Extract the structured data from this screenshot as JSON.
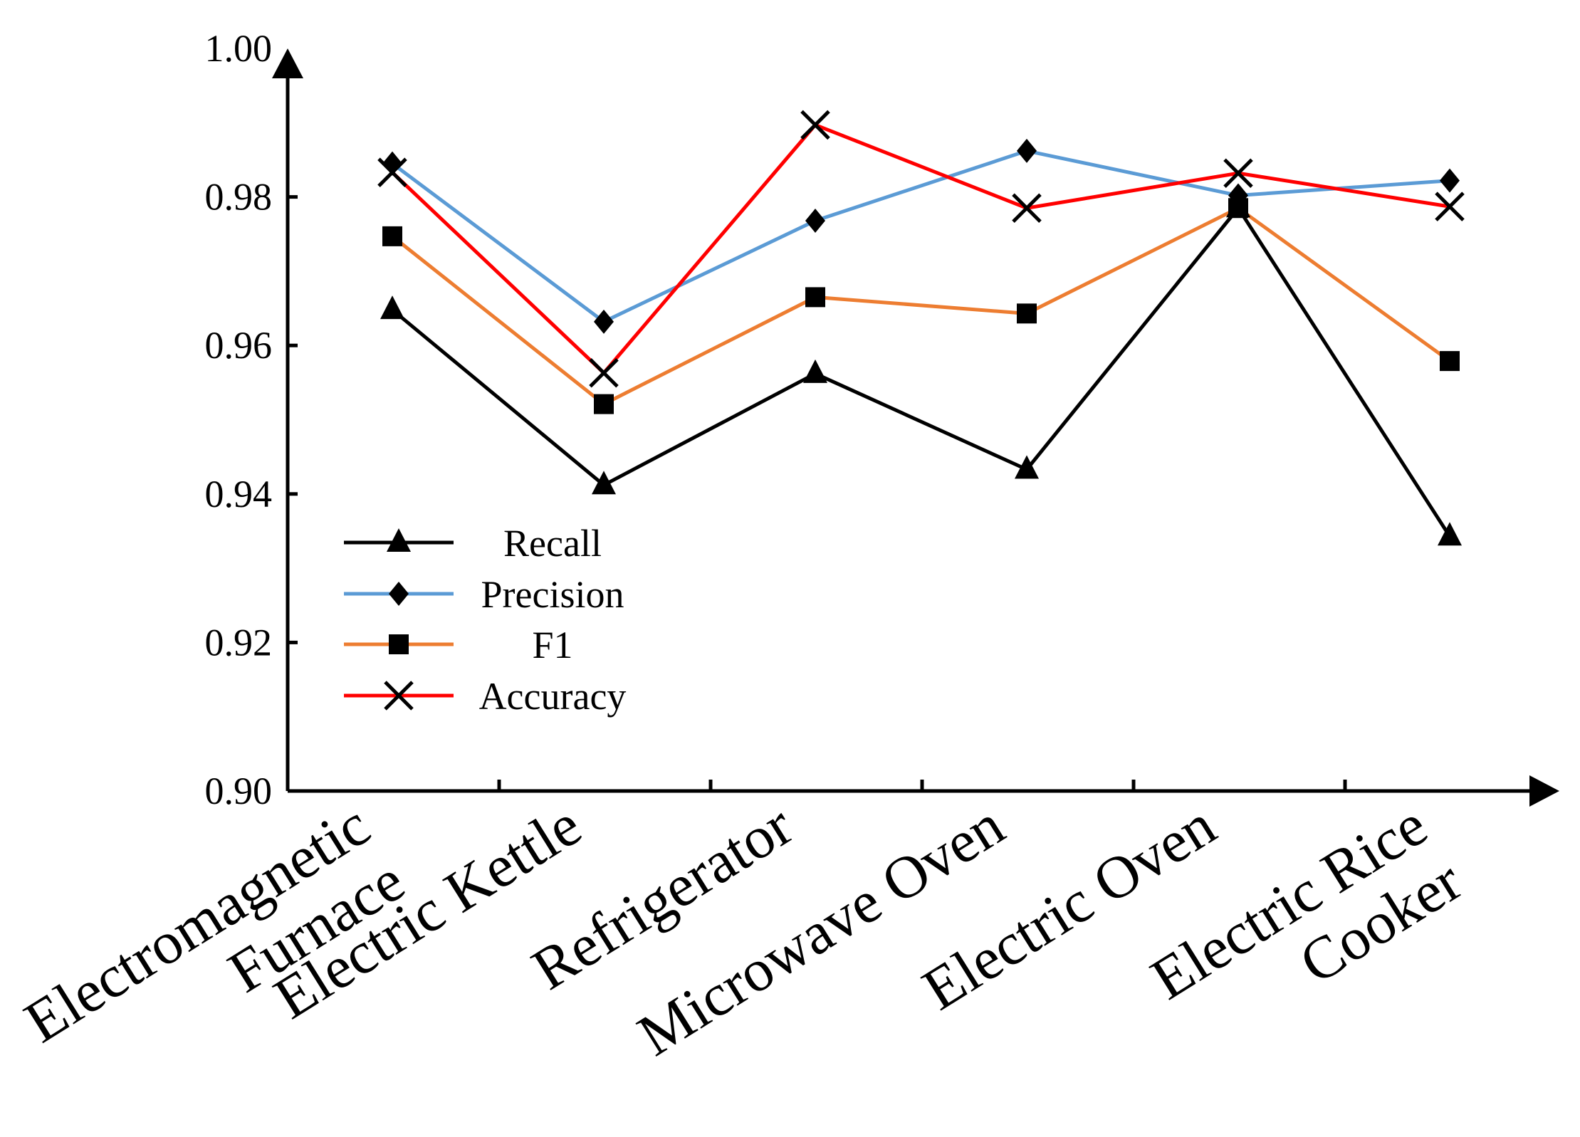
{
  "chart_data": {
    "type": "line",
    "title": "",
    "xlabel": "",
    "ylabel": "",
    "categories": [
      [
        "Electromagnetic",
        "Furnace"
      ],
      [
        "Electric Kettle"
      ],
      [
        "Refrigerator"
      ],
      [
        "Microwave Oven"
      ],
      [
        "Electric Oven"
      ],
      [
        "Electric Rice",
        "Cooker"
      ]
    ],
    "ylim": [
      0.9,
      1.0
    ],
    "yticks": [
      "0.90",
      "0.92",
      "0.94",
      "0.96",
      "0.98",
      "1.00"
    ],
    "grid": false,
    "legend_position": "lower-left",
    "series": [
      {
        "name": "Recall",
        "color": "#000000",
        "marker": "triangle",
        "values": [
          0.9648,
          0.9412,
          0.9562,
          0.9433,
          0.9785,
          0.9343
        ]
      },
      {
        "name": "Precision",
        "color": "#5B9BD5",
        "marker": "diamond",
        "values": [
          0.9845,
          0.9632,
          0.9768,
          0.9862,
          0.9802,
          0.9822
        ]
      },
      {
        "name": "F1",
        "color": "#ED7D31",
        "marker": "square",
        "values": [
          0.9747,
          0.9521,
          0.9665,
          0.9643,
          0.9785,
          0.9579
        ]
      },
      {
        "name": "Accuracy",
        "color": "#FF0000",
        "marker": "cross",
        "values": [
          0.9833,
          0.9563,
          0.9897,
          0.9785,
          0.9832,
          0.9787
        ]
      }
    ]
  }
}
